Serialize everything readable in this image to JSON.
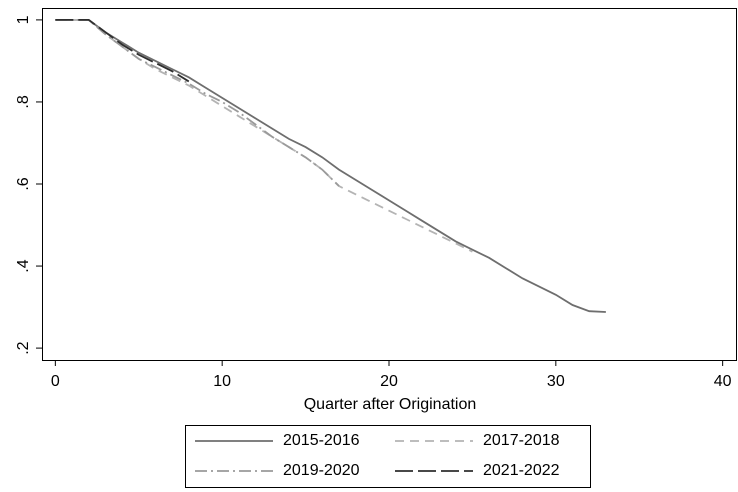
{
  "chart_data": {
    "type": "line",
    "x_label": "Quarter after Origination",
    "x": [
      0,
      1,
      2,
      3,
      4,
      5,
      6,
      7,
      8,
      9,
      10,
      11,
      12,
      13,
      14,
      15,
      16,
      17,
      18,
      19,
      20,
      21,
      22,
      23,
      24,
      25,
      26,
      27,
      28,
      29,
      30,
      31,
      32,
      33
    ],
    "series": [
      {
        "name": "2015-2016",
        "color": "#6e6e6e",
        "style": "solid",
        "values": [
          1,
          1,
          1,
          0.97,
          0.945,
          0.92,
          0.9,
          0.88,
          0.86,
          0.835,
          0.81,
          0.785,
          0.76,
          0.735,
          0.71,
          0.69,
          0.665,
          0.635,
          0.61,
          0.585,
          0.56,
          0.535,
          0.51,
          0.485,
          0.46,
          0.44,
          0.42,
          0.395,
          0.37,
          0.35,
          0.33,
          0.305,
          0.29,
          0.288
        ]
      },
      {
        "name": "2017-2018",
        "color": "#b4b4b4",
        "style": "dash",
        "values": [
          1,
          1,
          1,
          0.965,
          0.935,
          0.905,
          0.88,
          0.86,
          0.84,
          0.815,
          0.79,
          0.765,
          0.74,
          0.715,
          0.69,
          0.665,
          0.635,
          0.595,
          0.575,
          0.555,
          0.535,
          0.515,
          0.495,
          0.475,
          0.455,
          0.435,
          null,
          null,
          null,
          null,
          null,
          null,
          null,
          null
        ]
      },
      {
        "name": "2019-2020",
        "color": "#9a9a9a",
        "style": "dashdot",
        "values": [
          1,
          1,
          1,
          0.965,
          0.935,
          0.905,
          0.885,
          0.865,
          0.845,
          0.82,
          0.8,
          0.775,
          0.745,
          0.715,
          0.69,
          0.665,
          0.635,
          0.595,
          null,
          null,
          null,
          null,
          null,
          null,
          null,
          null,
          null,
          null,
          null,
          null,
          null,
          null,
          null,
          null
        ]
      },
      {
        "name": "2021-2022",
        "color": "#2e2e2e",
        "style": "longdash",
        "values": [
          1,
          1,
          1,
          0.97,
          0.94,
          0.915,
          0.895,
          0.875,
          0.85,
          null,
          null,
          null,
          null,
          null,
          null,
          null,
          null,
          null,
          null,
          null,
          null,
          null,
          null,
          null,
          null,
          null,
          null,
          null,
          null,
          null,
          null,
          null,
          null,
          null
        ]
      }
    ],
    "xlim": [
      -0.8,
      40.8
    ],
    "xticks": [
      0,
      10,
      20,
      30,
      40
    ],
    "ylim": [
      0.171,
      1.029
    ],
    "yticks": [
      {
        "value": 0.2,
        "label": ".2"
      },
      {
        "value": 0.4,
        "label": ".4"
      },
      {
        "value": 0.6,
        "label": ".6"
      },
      {
        "value": 0.8,
        "label": ".8"
      },
      1
    ],
    "grid": false,
    "legend": "bottom"
  }
}
